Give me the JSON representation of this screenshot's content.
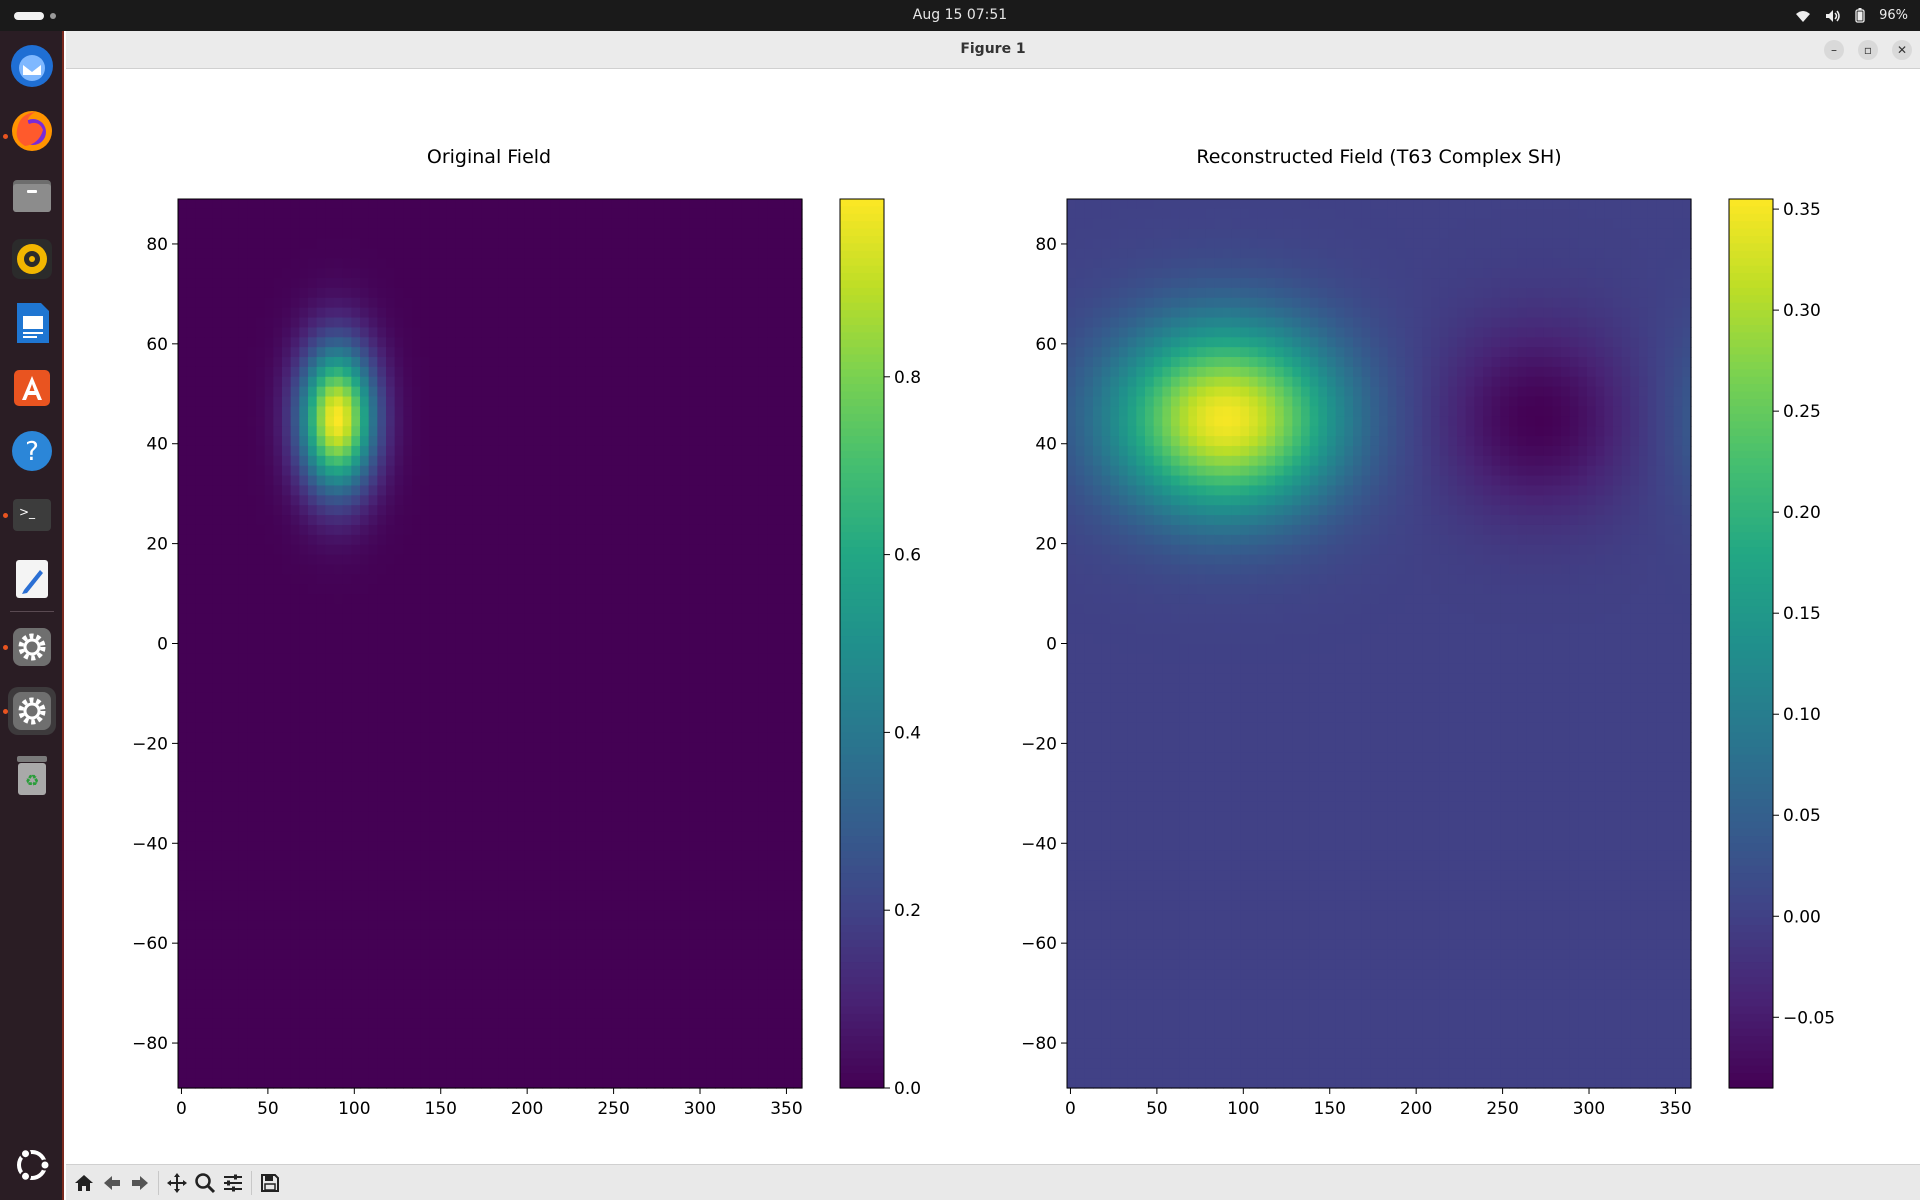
{
  "topbar": {
    "datetime": "Aug 15  07:51",
    "battery": "96%"
  },
  "dock": {
    "items": [
      {
        "name": "thunderbird-icon",
        "color": "#2f7fe0"
      },
      {
        "name": "firefox-icon",
        "color": "#ff7a1a"
      },
      {
        "name": "files-icon",
        "color": "#8a8a8a"
      },
      {
        "name": "rhythmbox-icon",
        "color": "#f1b400"
      },
      {
        "name": "writer-icon",
        "color": "#2a7fd8"
      },
      {
        "name": "app-center-icon",
        "color": "#e95420"
      },
      {
        "name": "help-icon",
        "color": "#3a8fd8"
      },
      {
        "name": "terminal-icon",
        "color": "#3a3a3a"
      },
      {
        "name": "text-editor-icon",
        "color": "#4a90e2"
      },
      {
        "name": "settings-icon",
        "color": "#7a7a7a"
      },
      {
        "name": "settings-icon-2",
        "color": "#7a7a7a"
      },
      {
        "name": "trash-icon",
        "color": "#9a9a9a"
      }
    ],
    "show_apps_icon": "ubuntu-logo-icon"
  },
  "window": {
    "title": "Figure 1",
    "minimize": "–",
    "maximize": "▫",
    "close": "✕"
  },
  "toolbar": {
    "buttons": [
      "home-icon",
      "back-icon",
      "forward-icon",
      "pan-icon",
      "zoom-icon",
      "configure-icon",
      "save-icon"
    ]
  },
  "chart_data": [
    {
      "type": "heatmap",
      "title": "Original Field",
      "colormap": "viridis",
      "xlim": [
        -2,
        359
      ],
      "ylim": [
        -89,
        89
      ],
      "xticks": [
        "0",
        "50",
        "100",
        "150",
        "200",
        "250",
        "300",
        "350"
      ],
      "yticks": [
        "80",
        "60",
        "40",
        "20",
        "0",
        "−20",
        "−40",
        "−60",
        "−80"
      ],
      "field": {
        "kind": "gaussian",
        "center_lon": 90,
        "center_lat": 45,
        "amplitude": 1.0
      },
      "colorbar": {
        "range": [
          0.0,
          1.0
        ],
        "ticks": [
          "0.0",
          "0.2",
          "0.4",
          "0.6",
          "0.8"
        ]
      }
    },
    {
      "type": "heatmap",
      "title": "Reconstructed Field (T63 Complex SH)",
      "colormap": "viridis",
      "xlim": [
        -2,
        359
      ],
      "ylim": [
        -89,
        89
      ],
      "xticks": [
        "0",
        "50",
        "100",
        "150",
        "200",
        "250",
        "300",
        "350"
      ],
      "yticks": [
        "80",
        "60",
        "40",
        "20",
        "0",
        "−20",
        "−40",
        "−60",
        "−80"
      ],
      "field": {
        "kind": "dipole",
        "center_lat": 45,
        "max": 0.35,
        "min": -0.085,
        "background": 0.0
      },
      "colorbar": {
        "range": [
          -0.085,
          0.355
        ],
        "ticks": [
          "0.35",
          "0.30",
          "0.25",
          "0.20",
          "0.15",
          "0.10",
          "0.05",
          "0.00",
          "−0.05"
        ]
      }
    }
  ]
}
